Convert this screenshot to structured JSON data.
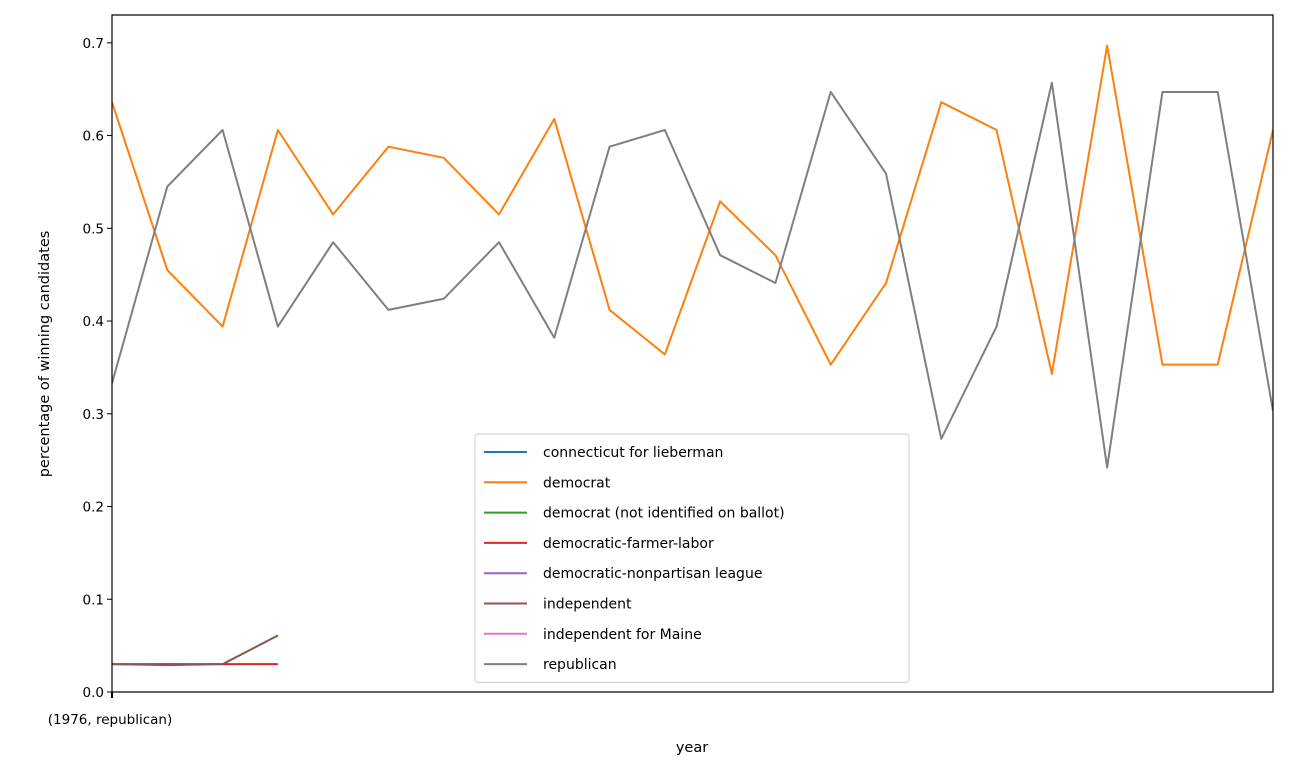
{
  "chart_data": {
    "type": "line",
    "title": "",
    "xlabel": "year",
    "ylabel": "percentage of winning candidates",
    "xlim": [
      0,
      21
    ],
    "ylim": [
      0,
      0.73
    ],
    "yticks": [
      0.0,
      0.1,
      0.2,
      0.3,
      0.4,
      0.5,
      0.6,
      0.7
    ],
    "ytick_labels": [
      "0.0",
      "0.1",
      "0.2",
      "0.3",
      "0.4",
      "0.5",
      "0.6",
      "0.7"
    ],
    "xtick_labels": [
      {
        "x": 0,
        "label": "(1976, republican)"
      }
    ],
    "grid": false,
    "legend_position": "lower-center",
    "series": [
      {
        "name": "connecticut for lieberman",
        "color": "#1f77b4",
        "x": [],
        "values": []
      },
      {
        "name": "democrat",
        "color": "#ff7f0e",
        "x": [
          0,
          1,
          2,
          3,
          4,
          5,
          6,
          7,
          8,
          9,
          10,
          11,
          12,
          13,
          14,
          15,
          16,
          17,
          18,
          19,
          20,
          21
        ],
        "values": [
          0.636,
          0.455,
          0.394,
          0.606,
          0.515,
          0.588,
          0.576,
          0.515,
          0.618,
          0.412,
          0.364,
          0.529,
          0.471,
          0.353,
          0.441,
          0.636,
          0.606,
          0.343,
          0.697,
          0.353,
          0.353,
          0.606
        ]
      },
      {
        "name": "democrat (not identified on ballot)",
        "color": "#2ca02c",
        "x": [],
        "values": []
      },
      {
        "name": "democratic-farmer-labor",
        "color": "#d62728",
        "x": [
          0,
          1,
          2,
          3
        ],
        "values": [
          0.03,
          0.03,
          0.03,
          0.03
        ]
      },
      {
        "name": "democratic-nonpartisan league",
        "color": "#9467bd",
        "x": [],
        "values": []
      },
      {
        "name": "independent",
        "color": "#8c564b",
        "x": [
          0,
          1,
          2,
          3
        ],
        "values": [
          0.03,
          0.029,
          0.03,
          0.061
        ]
      },
      {
        "name": "independent for Maine",
        "color": "#e377c2",
        "x": [],
        "values": []
      },
      {
        "name": "republican",
        "color": "#7f7f7f",
        "x": [
          0,
          1,
          2,
          3,
          4,
          5,
          6,
          7,
          8,
          9,
          10,
          11,
          12,
          13,
          14,
          15,
          16,
          17,
          18,
          19,
          20,
          21
        ],
        "values": [
          0.333,
          0.545,
          0.606,
          0.394,
          0.485,
          0.412,
          0.424,
          0.485,
          0.382,
          0.588,
          0.606,
          0.471,
          0.441,
          0.647,
          0.559,
          0.273,
          0.394,
          0.657,
          0.242,
          0.647,
          0.647,
          0.303
        ]
      }
    ]
  }
}
